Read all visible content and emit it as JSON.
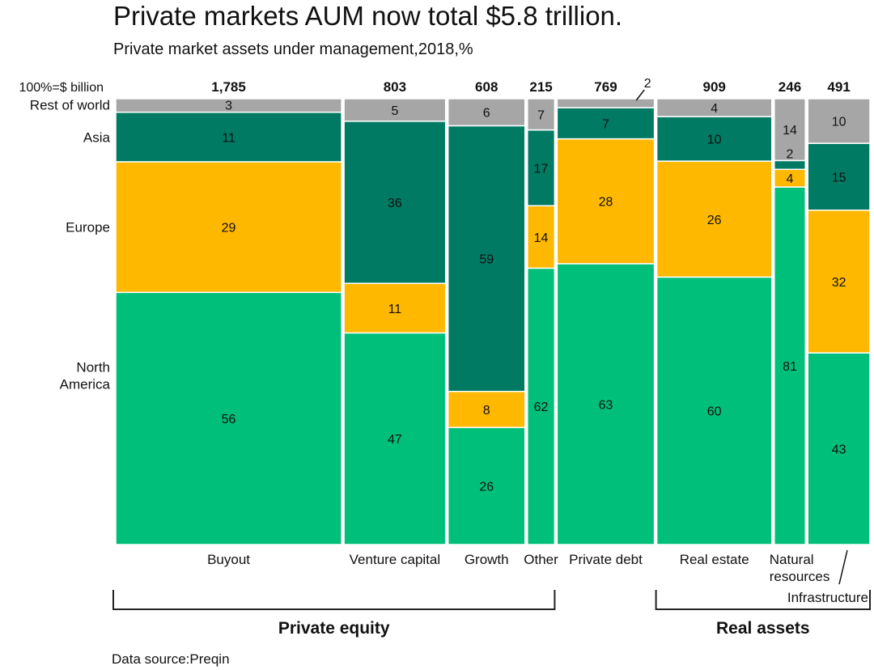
{
  "title": "Private markets AUM now total $5.8 trillion.",
  "subtitle": "Private market assets under management,2018,%",
  "source": "Data source:Preqin",
  "colors": {
    "rest_of_world": "#A6A6A6",
    "asia": "#007A63",
    "europe": "#FFB800",
    "north_america": "#00BF7A",
    "bracket": "#222222"
  },
  "chart_data": {
    "type": "bar",
    "variant": "marimekko",
    "total_label": "100%=$ billion",
    "categories": [
      "Buyout",
      "Venture capital",
      "Growth",
      "Other",
      "Private debt",
      "Real estate",
      "Natural resources",
      "Infrastructure"
    ],
    "category_label_lines": [
      [
        "Buyout"
      ],
      [
        "Venture capital"
      ],
      [
        "Growth"
      ],
      [
        "Other"
      ],
      [
        "Private debt"
      ],
      [
        "Real estate"
      ],
      [
        "Natural",
        "resources"
      ],
      [
        "Infrastructure"
      ]
    ],
    "totals": [
      1785,
      803,
      608,
      215,
      769,
      909,
      246,
      491
    ],
    "total_labels": [
      "1,785",
      "803",
      "608",
      "215",
      "769",
      "909",
      "246",
      "491"
    ],
    "series": [
      {
        "name": "North America",
        "key": "north_america",
        "label_lines": [
          "North",
          "America"
        ],
        "values": [
          56,
          47,
          26,
          62,
          63,
          60,
          81,
          43
        ]
      },
      {
        "name": "Europe",
        "key": "europe",
        "label_lines": [
          "Europe"
        ],
        "values": [
          29,
          11,
          8,
          14,
          28,
          26,
          4,
          32
        ]
      },
      {
        "name": "Asia",
        "key": "asia",
        "label_lines": [
          "Asia"
        ],
        "values": [
          11,
          36,
          59,
          17,
          7,
          10,
          2,
          15
        ]
      },
      {
        "name": "Rest of world",
        "key": "rest_of_world",
        "label_lines": [
          "Rest of world"
        ],
        "values": [
          3,
          5,
          6,
          7,
          2,
          4,
          14,
          10
        ]
      }
    ],
    "groups": [
      {
        "label": "Private equity",
        "from": 0,
        "to": 3
      },
      {
        "label": "Real assets",
        "from": 5,
        "to": 7
      }
    ],
    "ylim": [
      0,
      100
    ],
    "grid": false,
    "legend": "left"
  }
}
